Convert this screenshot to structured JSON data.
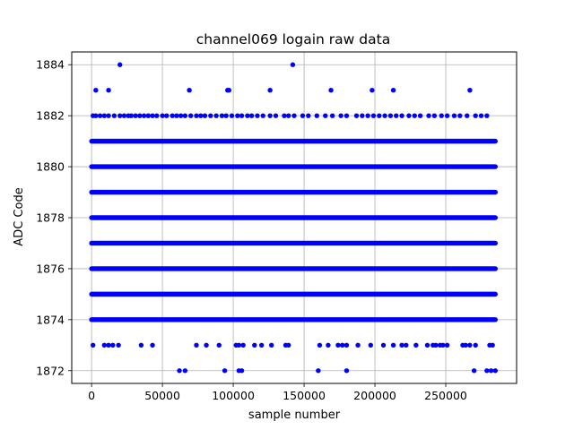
{
  "chart_data": {
    "type": "scatter",
    "title": "channel069 logain raw data",
    "xlabel": "sample number",
    "ylabel": "ADC Code",
    "xlim": [
      -14000,
      300000
    ],
    "ylim": [
      1871.5,
      1884.5
    ],
    "xticks": [
      0,
      50000,
      100000,
      150000,
      200000,
      250000
    ],
    "yticks": [
      1872,
      1874,
      1876,
      1878,
      1880,
      1882,
      1884
    ],
    "grid": true,
    "marker_color": "#0000ff",
    "series": [
      {
        "dense_levels": [
          {
            "y": 1874,
            "x_range": [
              0,
              285000
            ]
          },
          {
            "y": 1875,
            "x_range": [
              0,
              285000
            ]
          },
          {
            "y": 1876,
            "x_range": [
              0,
              285000
            ]
          },
          {
            "y": 1877,
            "x_range": [
              0,
              285000
            ]
          },
          {
            "y": 1878,
            "x_range": [
              0,
              285000
            ]
          },
          {
            "y": 1879,
            "x_range": [
              0,
              285000
            ]
          },
          {
            "y": 1880,
            "x_range": [
              0,
              285000
            ]
          },
          {
            "y": 1881,
            "x_range": [
              0,
              285000
            ]
          }
        ],
        "points": [
          [
            20000,
            1884
          ],
          [
            142000,
            1884
          ],
          [
            3000,
            1883
          ],
          [
            12000,
            1883
          ],
          [
            69000,
            1883
          ],
          [
            96000,
            1883
          ],
          [
            97000,
            1883
          ],
          [
            126000,
            1883
          ],
          [
            169000,
            1883
          ],
          [
            198000,
            1883
          ],
          [
            213000,
            1883
          ],
          [
            267000,
            1883
          ],
          [
            1000,
            1882
          ],
          [
            3000,
            1882
          ],
          [
            6000,
            1882
          ],
          [
            9000,
            1882
          ],
          [
            12000,
            1882
          ],
          [
            16000,
            1882
          ],
          [
            20000,
            1882
          ],
          [
            23000,
            1882
          ],
          [
            26000,
            1882
          ],
          [
            28000,
            1882
          ],
          [
            31000,
            1882
          ],
          [
            34000,
            1882
          ],
          [
            37000,
            1882
          ],
          [
            40000,
            1882
          ],
          [
            43000,
            1882
          ],
          [
            46000,
            1882
          ],
          [
            50000,
            1882
          ],
          [
            53000,
            1882
          ],
          [
            57000,
            1882
          ],
          [
            60000,
            1882
          ],
          [
            63000,
            1882
          ],
          [
            66000,
            1882
          ],
          [
            70000,
            1882
          ],
          [
            74000,
            1882
          ],
          [
            77000,
            1882
          ],
          [
            80000,
            1882
          ],
          [
            84000,
            1882
          ],
          [
            88000,
            1882
          ],
          [
            92000,
            1882
          ],
          [
            95000,
            1882
          ],
          [
            99000,
            1882
          ],
          [
            103000,
            1882
          ],
          [
            106000,
            1882
          ],
          [
            110000,
            1882
          ],
          [
            113000,
            1882
          ],
          [
            117000,
            1882
          ],
          [
            121000,
            1882
          ],
          [
            126000,
            1882
          ],
          [
            130000,
            1882
          ],
          [
            136000,
            1882
          ],
          [
            139000,
            1882
          ],
          [
            143000,
            1882
          ],
          [
            149000,
            1882
          ],
          [
            153000,
            1882
          ],
          [
            159000,
            1882
          ],
          [
            165000,
            1882
          ],
          [
            170000,
            1882
          ],
          [
            176000,
            1882
          ],
          [
            180000,
            1882
          ],
          [
            187000,
            1882
          ],
          [
            191000,
            1882
          ],
          [
            195000,
            1882
          ],
          [
            199000,
            1882
          ],
          [
            203000,
            1882
          ],
          [
            207000,
            1882
          ],
          [
            211000,
            1882
          ],
          [
            215000,
            1882
          ],
          [
            219000,
            1882
          ],
          [
            224000,
            1882
          ],
          [
            228000,
            1882
          ],
          [
            232000,
            1882
          ],
          [
            238000,
            1882
          ],
          [
            242000,
            1882
          ],
          [
            247000,
            1882
          ],
          [
            251000,
            1882
          ],
          [
            256000,
            1882
          ],
          [
            260000,
            1882
          ],
          [
            265000,
            1882
          ],
          [
            271000,
            1882
          ],
          [
            275000,
            1882
          ],
          [
            279000,
            1882
          ],
          [
            1000,
            1873
          ],
          [
            9000,
            1873
          ],
          [
            12000,
            1873
          ],
          [
            15000,
            1873
          ],
          [
            19000,
            1873
          ],
          [
            35000,
            1873
          ],
          [
            43000,
            1873
          ],
          [
            74000,
            1873
          ],
          [
            81000,
            1873
          ],
          [
            90000,
            1873
          ],
          [
            102000,
            1873
          ],
          [
            104000,
            1873
          ],
          [
            107000,
            1873
          ],
          [
            115000,
            1873
          ],
          [
            120000,
            1873
          ],
          [
            127000,
            1873
          ],
          [
            137000,
            1873
          ],
          [
            139000,
            1873
          ],
          [
            161000,
            1873
          ],
          [
            167000,
            1873
          ],
          [
            174000,
            1873
          ],
          [
            177000,
            1873
          ],
          [
            180000,
            1873
          ],
          [
            188000,
            1873
          ],
          [
            197000,
            1873
          ],
          [
            206000,
            1873
          ],
          [
            213000,
            1873
          ],
          [
            219000,
            1873
          ],
          [
            222000,
            1873
          ],
          [
            229000,
            1873
          ],
          [
            237000,
            1873
          ],
          [
            241000,
            1873
          ],
          [
            243000,
            1873
          ],
          [
            246000,
            1873
          ],
          [
            248000,
            1873
          ],
          [
            251000,
            1873
          ],
          [
            262000,
            1873
          ],
          [
            264000,
            1873
          ],
          [
            267000,
            1873
          ],
          [
            271000,
            1873
          ],
          [
            281000,
            1873
          ],
          [
            283000,
            1873
          ],
          [
            62000,
            1872
          ],
          [
            66000,
            1872
          ],
          [
            94000,
            1872
          ],
          [
            104000,
            1872
          ],
          [
            106000,
            1872
          ],
          [
            160000,
            1872
          ],
          [
            180000,
            1872
          ],
          [
            270000,
            1872
          ],
          [
            279000,
            1872
          ],
          [
            282000,
            1872
          ],
          [
            285000,
            1872
          ]
        ]
      }
    ]
  }
}
